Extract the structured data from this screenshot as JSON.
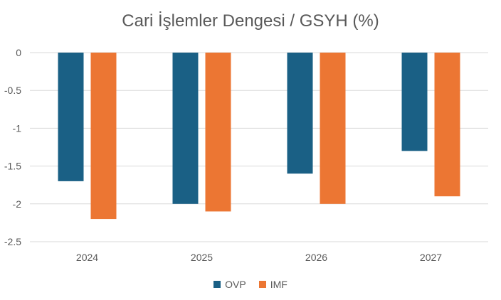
{
  "chart_data": {
    "type": "bar",
    "title": "Cari İşlemler Dengesi / GSYH (%)",
    "categories": [
      "2024",
      "2025",
      "2026",
      "2027"
    ],
    "series": [
      {
        "name": "OVP",
        "values": [
          -1.7,
          -2.0,
          -1.6,
          -1.3
        ],
        "color": "#1a6085"
      },
      {
        "name": "IMF",
        "values": [
          -2.2,
          -2.1,
          -2.0,
          -1.9
        ],
        "color": "#ec7633"
      }
    ],
    "yticks": [
      "0",
      "-0.5",
      "-1",
      "-1.5",
      "-2",
      "-2.5"
    ],
    "ylim": [
      -2.5,
      0
    ],
    "grid": true,
    "legend_position": "bottom"
  }
}
